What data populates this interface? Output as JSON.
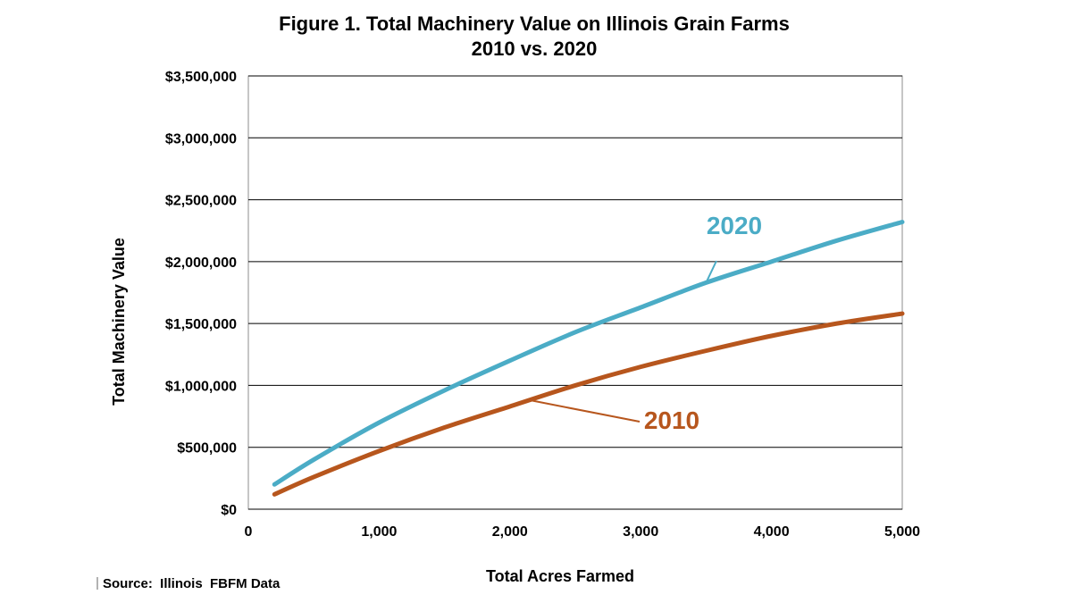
{
  "chart_data": {
    "type": "line",
    "title": "Figure 1. Total Machinery Value on Illinois Grain Farms",
    "subtitle": "2010 vs. 2020",
    "xlabel": "Total Acres Farmed",
    "ylabel": "Total Machinery Value",
    "xlim": [
      0,
      5000
    ],
    "ylim": [
      0,
      3500000
    ],
    "xticks": [
      0,
      1000,
      2000,
      3000,
      4000,
      5000
    ],
    "xtick_labels": [
      "0",
      "1,000",
      "2,000",
      "3,000",
      "4,000",
      "5,000"
    ],
    "yticks": [
      0,
      500000,
      1000000,
      1500000,
      2000000,
      2500000,
      3000000,
      3500000
    ],
    "ytick_labels": [
      "$0",
      "$500,000",
      "$1,000,000",
      "$1,500,000",
      "$2,000,000",
      "$2,500,000",
      "$3,000,000",
      "$3,500,000"
    ],
    "grid": "horizontal",
    "series": [
      {
        "name": "2020",
        "color": "#4bacc6",
        "x": [
          200,
          500,
          1000,
          1500,
          2000,
          2500,
          3000,
          3500,
          4000,
          4500,
          5000
        ],
        "y": [
          200000,
          400000,
          700000,
          960000,
          1200000,
          1430000,
          1630000,
          1830000,
          2000000,
          2170000,
          2320000
        ]
      },
      {
        "name": "2010",
        "color": "#b7561d",
        "x": [
          200,
          500,
          1000,
          1500,
          2000,
          2500,
          3000,
          3500,
          4000,
          4500,
          5000
        ],
        "y": [
          120000,
          260000,
          470000,
          660000,
          830000,
          1000000,
          1150000,
          1280000,
          1400000,
          1500000,
          1580000
        ]
      }
    ],
    "annotations": [
      {
        "text": "2020",
        "series": 0,
        "callout_from_x": 3500
      },
      {
        "text": "2010",
        "series": 1,
        "callout_from_x": 2150
      }
    ],
    "source": "Source:  Illinois  FBFM Data"
  }
}
